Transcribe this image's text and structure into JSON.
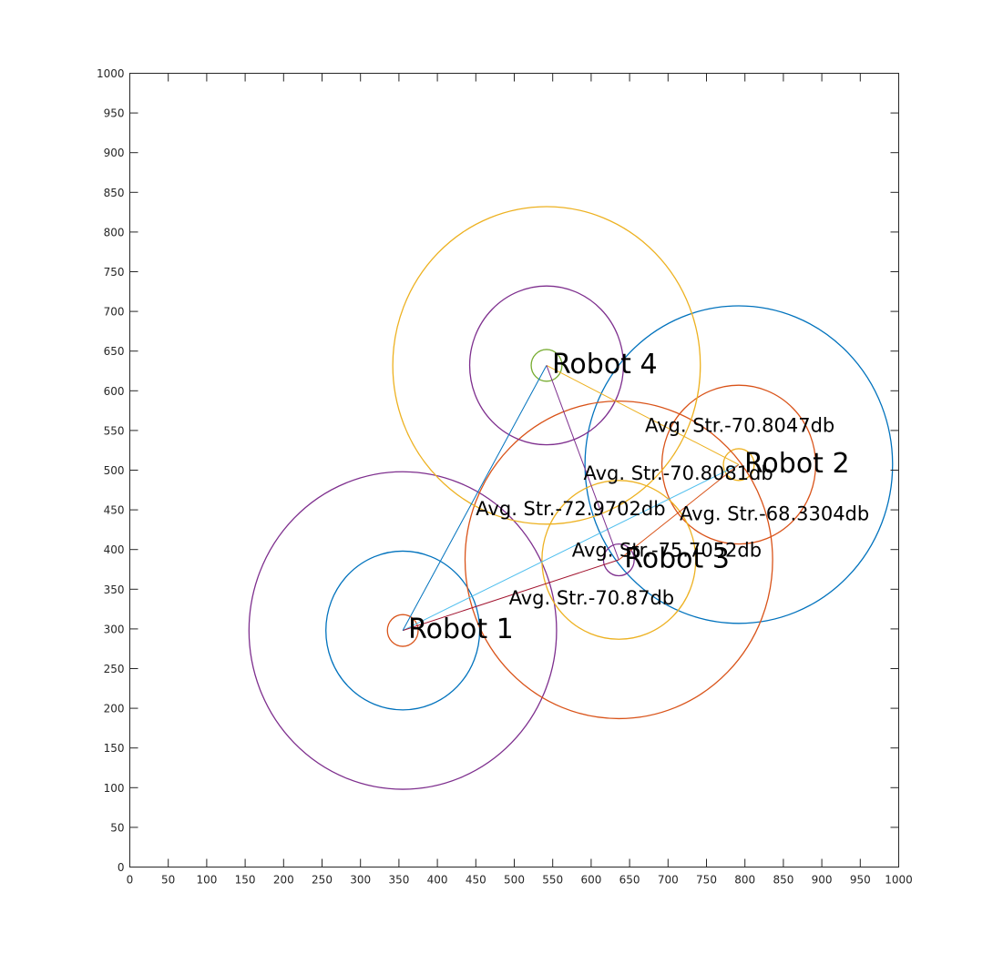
{
  "chart_data": {
    "type": "scatter",
    "title": "",
    "xlabel": "",
    "ylabel": "",
    "xlim": [
      0,
      1000
    ],
    "ylim": [
      0,
      1000
    ],
    "grid": false,
    "xticks": [
      0,
      50,
      100,
      150,
      200,
      250,
      300,
      350,
      400,
      450,
      500,
      550,
      600,
      650,
      700,
      750,
      800,
      850,
      900,
      950,
      1000
    ],
    "yticks": [
      0,
      50,
      100,
      150,
      200,
      250,
      300,
      350,
      400,
      450,
      500,
      550,
      600,
      650,
      700,
      750,
      800,
      850,
      900,
      950,
      1000
    ],
    "robots": [
      {
        "label": "Robot 1",
        "x": 355,
        "y": 298,
        "rings": [
          {
            "r": 20,
            "color": "#d95319"
          },
          {
            "r": 100,
            "color": "#0072bd"
          },
          {
            "r": 200,
            "color": "#7e2f8e"
          }
        ]
      },
      {
        "label": "Robot 2",
        "x": 792,
        "y": 507,
        "rings": [
          {
            "r": 20,
            "color": "#edb120"
          },
          {
            "r": 100,
            "color": "#d95319"
          },
          {
            "r": 200,
            "color": "#0072bd"
          }
        ]
      },
      {
        "label": "Robot 3",
        "x": 636,
        "y": 387,
        "rings": [
          {
            "r": 20,
            "color": "#7e2f8e"
          },
          {
            "r": 100,
            "color": "#edb120"
          },
          {
            "r": 200,
            "color": "#d95319"
          }
        ]
      },
      {
        "label": "Robot 4",
        "x": 542,
        "y": 632,
        "rings": [
          {
            "r": 20,
            "color": "#77ac30"
          },
          {
            "r": 100,
            "color": "#7e2f8e"
          },
          {
            "r": 200,
            "color": "#edb120"
          }
        ]
      }
    ],
    "links": [
      {
        "from": 0,
        "to": 1,
        "color": "#4dbeee"
      },
      {
        "from": 0,
        "to": 2,
        "color": "#a2142f"
      },
      {
        "from": 0,
        "to": 3,
        "color": "#0072bd"
      },
      {
        "from": 1,
        "to": 2,
        "color": "#d95319"
      },
      {
        "from": 1,
        "to": 3,
        "color": "#edb120"
      },
      {
        "from": 2,
        "to": 3,
        "color": "#7e2f8e"
      }
    ],
    "annotations": [
      {
        "text": "Avg. Str.-70.8047db",
        "x": 670,
        "y": 555
      },
      {
        "text": "Avg. Str.-70.8081db",
        "x": 590,
        "y": 495
      },
      {
        "text": "Avg. Str.-72.9702db",
        "x": 450,
        "y": 450
      },
      {
        "text": "Avg. Str.-68.3304db",
        "x": 715,
        "y": 444
      },
      {
        "text": "Avg. Str.-75.7052db",
        "x": 575,
        "y": 398
      },
      {
        "text": "Avg. Str.-70.87db",
        "x": 493,
        "y": 338
      }
    ]
  }
}
